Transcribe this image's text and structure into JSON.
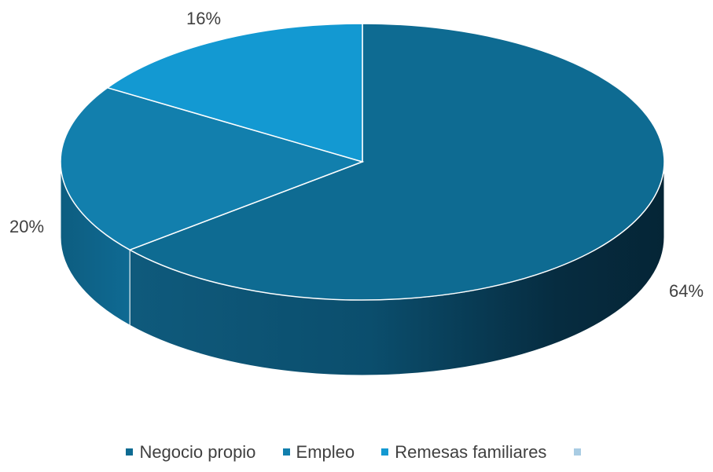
{
  "chart_data": {
    "type": "pie",
    "variant": "3d",
    "legend_position": "bottom",
    "categories": [
      "Negocio propio",
      "Empleo",
      "Remesas familiares",
      ""
    ],
    "values": [
      64,
      20,
      16,
      0
    ],
    "labels": [
      "64%",
      "20%",
      "16%"
    ],
    "colors": [
      "#0e6b92",
      "#127fad",
      "#1399d2",
      "#a9cce3"
    ],
    "side_colors": [
      "#0a4a66",
      "#0d5a7c",
      "#0f6f99",
      "#a9cce3"
    ]
  }
}
